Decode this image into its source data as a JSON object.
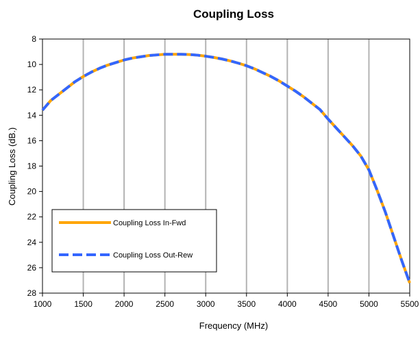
{
  "chart_data": {
    "type": "line",
    "title": "Coupling Loss",
    "xlabel": "Frequency (MHz)",
    "ylabel": "Coupling Loss (dB.)",
    "xlim": [
      1000,
      5500
    ],
    "ylim": [
      8,
      28
    ],
    "y_inverted": true,
    "xticks": [
      1000,
      1500,
      2000,
      2500,
      3000,
      3500,
      4000,
      4500,
      5000,
      5500
    ],
    "yticks": [
      8,
      10,
      12,
      14,
      16,
      18,
      20,
      22,
      24,
      26,
      28
    ],
    "grid": "vertical",
    "legend_position": "bottom-left",
    "x": [
      1000,
      1100,
      1200,
      1300,
      1400,
      1500,
      1600,
      1700,
      1800,
      1900,
      2000,
      2100,
      2200,
      2300,
      2400,
      2500,
      2600,
      2700,
      2800,
      2900,
      3000,
      3100,
      3200,
      3300,
      3400,
      3500,
      3600,
      3700,
      3800,
      3900,
      4000,
      4100,
      4200,
      4300,
      4400,
      4500,
      4600,
      4700,
      4800,
      4900,
      5000,
      5100,
      5200,
      5300,
      5400,
      5500
    ],
    "series": [
      {
        "name": "Coupling Loss In-Fwd",
        "color": "#FFA500",
        "style": "solid",
        "values": [
          13.6,
          12.85,
          12.35,
          11.85,
          11.35,
          10.95,
          10.6,
          10.3,
          10.05,
          9.85,
          9.65,
          9.5,
          9.4,
          9.3,
          9.25,
          9.2,
          9.2,
          9.2,
          9.22,
          9.27,
          9.35,
          9.45,
          9.57,
          9.72,
          9.9,
          10.1,
          10.35,
          10.65,
          10.95,
          11.3,
          11.7,
          12.1,
          12.55,
          13.05,
          13.55,
          14.3,
          15.0,
          15.7,
          16.4,
          17.2,
          18.3,
          19.9,
          21.6,
          23.5,
          25.4,
          27.2
        ]
      },
      {
        "name": "Coupling Loss Out-Rew",
        "color": "#3366FF",
        "style": "dashed",
        "values": [
          13.6,
          12.85,
          12.35,
          11.85,
          11.35,
          10.95,
          10.6,
          10.3,
          10.05,
          9.85,
          9.65,
          9.5,
          9.4,
          9.3,
          9.25,
          9.2,
          9.2,
          9.2,
          9.22,
          9.27,
          9.35,
          9.45,
          9.57,
          9.72,
          9.9,
          10.1,
          10.35,
          10.65,
          10.95,
          11.3,
          11.7,
          12.1,
          12.55,
          13.05,
          13.55,
          14.3,
          15.0,
          15.7,
          16.4,
          17.2,
          18.3,
          19.9,
          21.6,
          23.5,
          25.4,
          27.2
        ]
      }
    ]
  }
}
